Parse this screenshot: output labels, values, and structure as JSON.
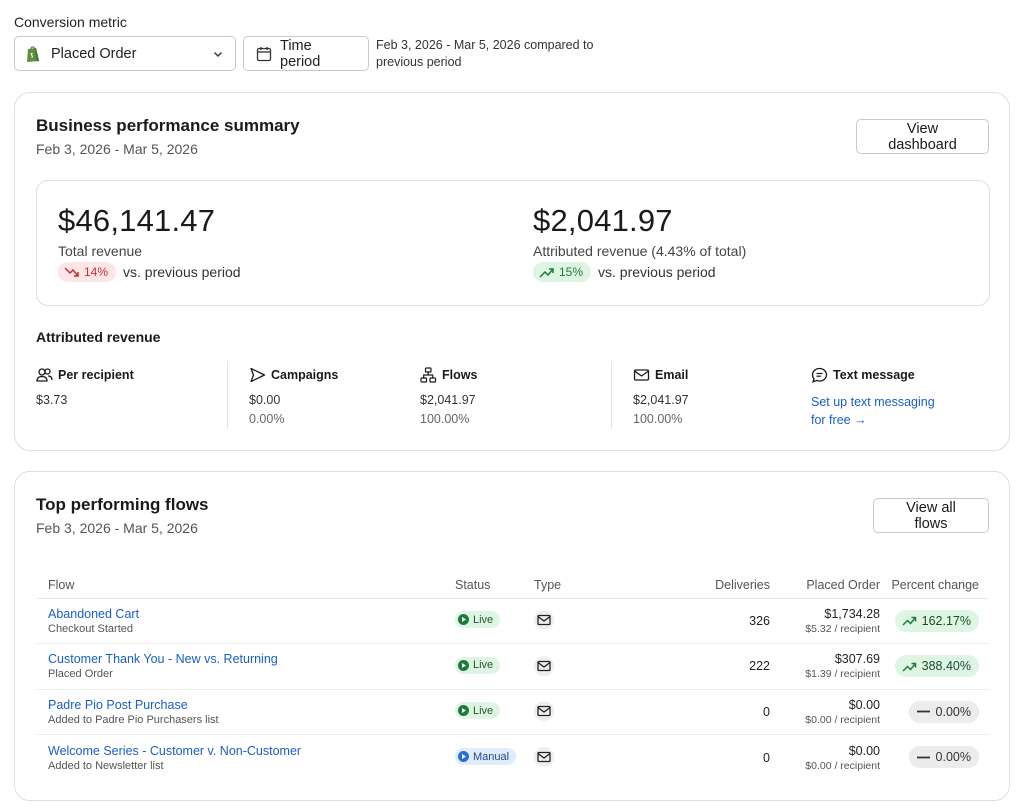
{
  "filters": {
    "label": "Conversion metric",
    "metric_value": "Placed Order",
    "time_button": "Time period",
    "compare_text": "Feb 3, 2026 - Mar 5, 2026 compared to previous period"
  },
  "summary": {
    "title": "Business performance summary",
    "date_range": "Feb 3, 2026 - Mar 5, 2026",
    "view_button": "View dashboard",
    "total": {
      "amount": "$46,141.47",
      "label": "Total revenue",
      "change": "14%",
      "change_direction": "down",
      "change_text": "vs. previous period"
    },
    "attributed": {
      "amount": "$2,041.97",
      "label": "Attributed revenue (4.43% of total)",
      "change": "15%",
      "change_direction": "up",
      "change_text": "vs. previous period"
    },
    "attributed_section": {
      "title": "Attributed revenue",
      "per_recipient": {
        "label": "Per recipient",
        "value": "$3.73",
        "icon": "people-icon"
      },
      "campaigns": {
        "label": "Campaigns",
        "value": "$0.00",
        "percent": "0.00%",
        "icon": "send-icon"
      },
      "flows": {
        "label": "Flows",
        "value": "$2,041.97",
        "percent": "100.00%",
        "icon": "flow-icon"
      },
      "email": {
        "label": "Email",
        "value": "$2,041.97",
        "percent": "100.00%",
        "icon": "mail-icon"
      },
      "sms": {
        "label": "Text message",
        "link": "Set up text messaging for free",
        "icon": "chat-icon"
      }
    }
  },
  "flows": {
    "title": "Top performing flows",
    "date_range": "Feb 3, 2026 - Mar 5, 2026",
    "view_button": "View all flows",
    "columns": [
      "Flow",
      "Status",
      "Type",
      "Deliveries",
      "Placed Order",
      "Percent change"
    ],
    "rows": [
      {
        "name": "Abandoned Cart",
        "trigger": "Checkout Started",
        "status": "Live",
        "deliveries": "326",
        "placed": "$1,734.28",
        "per_recipient": "$5.32 / recipient",
        "change": "162.17%",
        "trend": "up"
      },
      {
        "name": "Customer Thank You - New vs. Returning",
        "trigger": "Placed Order",
        "status": "Live",
        "deliveries": "222",
        "placed": "$307.69",
        "per_recipient": "$1.39 / recipient",
        "change": "388.40%",
        "trend": "up"
      },
      {
        "name": "Padre Pio Post Purchase",
        "trigger": "Added to Padre Pio Purchasers list",
        "status": "Live",
        "deliveries": "0",
        "placed": "$0.00",
        "per_recipient": "$0.00 / recipient",
        "change": "0.00%",
        "trend": "flat"
      },
      {
        "name": "Welcome Series - Customer v. Non-Customer",
        "trigger": "Added to Newsletter list",
        "status": "Manual",
        "deliveries": "0",
        "placed": "$0.00",
        "per_recipient": "$0.00 / recipient",
        "change": "0.00%",
        "trend": "flat"
      }
    ]
  },
  "colors": {
    "link": "#1a5fc6",
    "up_bg": "#dff5e4",
    "down_bg": "#fde6e6",
    "shopify_green": "#5e8e3e"
  }
}
